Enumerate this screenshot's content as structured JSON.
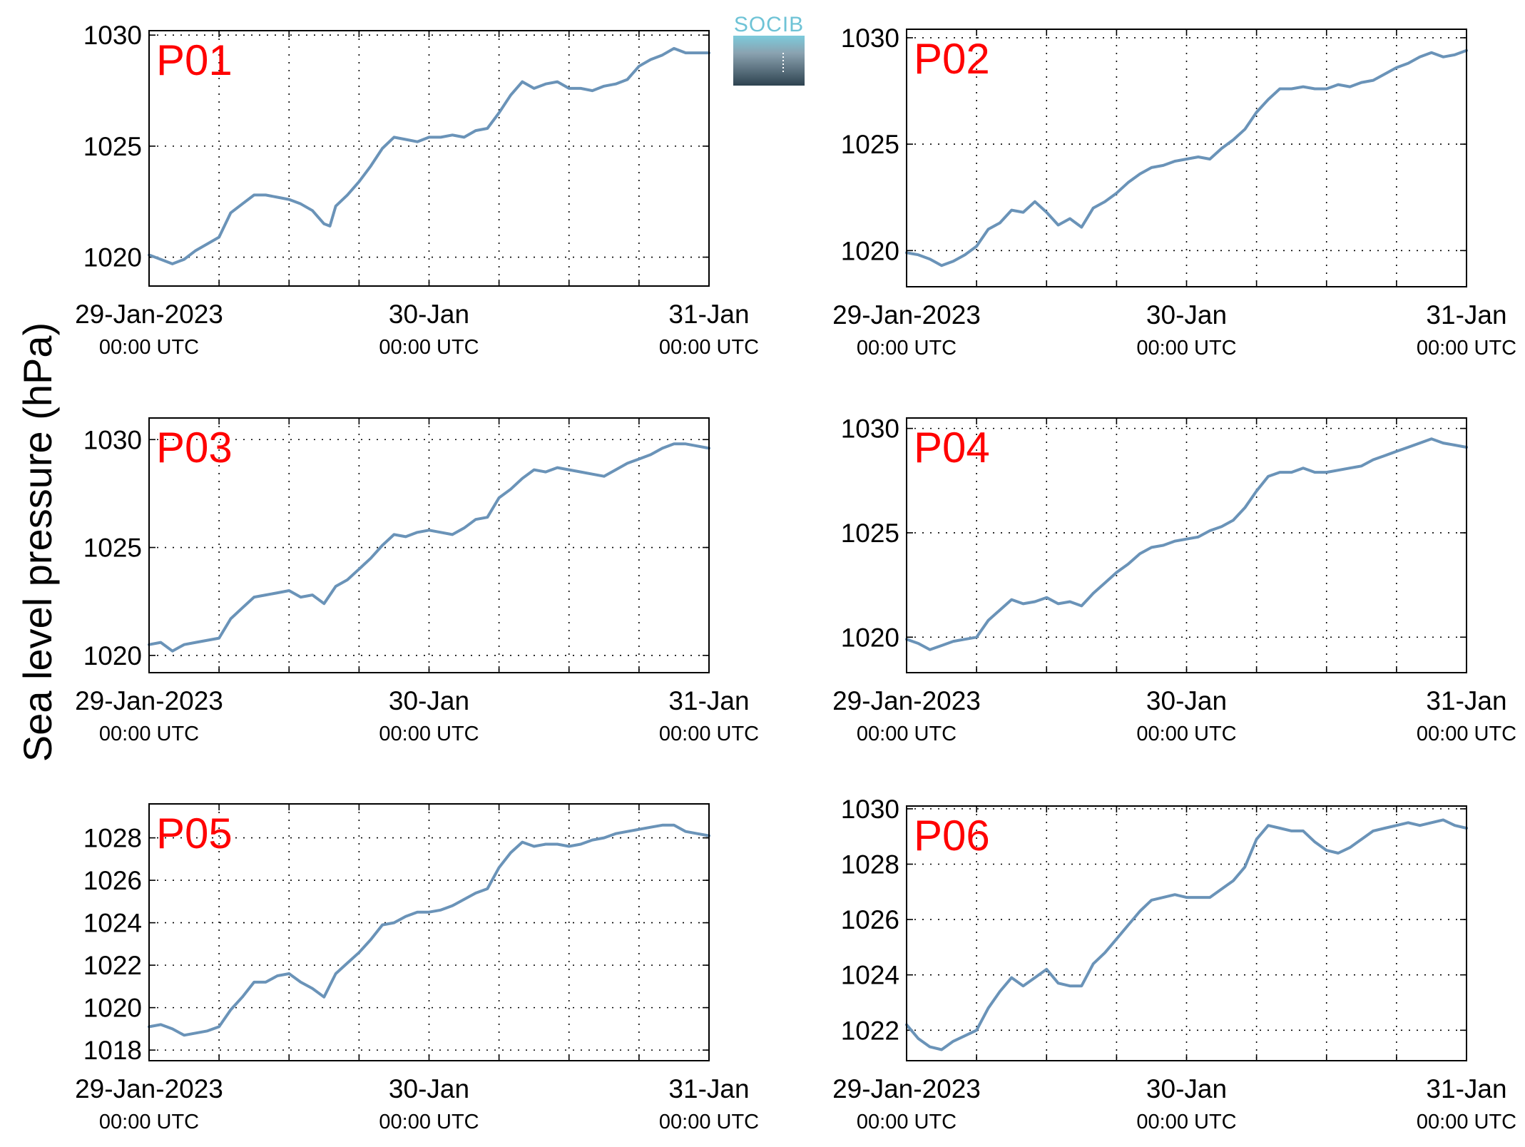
{
  "figure": {
    "ylabel": "Sea level pressure (hPa)",
    "logo_text": "SOCIB"
  },
  "colors": {
    "line": "#6a93b8",
    "panel_label": "#ff0000"
  },
  "chart_data": [
    {
      "type": "line",
      "label": "P01",
      "x_ticks": [
        {
          "x": 0,
          "main": "29-Jan-2023",
          "sub": "00:00 UTC"
        },
        {
          "x": 24,
          "main": "30-Jan",
          "sub": "00:00 UTC"
        },
        {
          "x": 48,
          "main": "31-Jan",
          "sub": "00:00 UTC"
        }
      ],
      "xlim": [
        0,
        48
      ],
      "ylim": [
        1018.7,
        1030.2
      ],
      "yticks": [
        1020,
        1025,
        1030
      ],
      "grid": true,
      "x": [
        0,
        1,
        2,
        3,
        4,
        5,
        6,
        7,
        8,
        9,
        10,
        11,
        12,
        13,
        14,
        15,
        15.5,
        16,
        17,
        18,
        19,
        20,
        21,
        22,
        23,
        24,
        25,
        26,
        27,
        28,
        29,
        30,
        31,
        32,
        33,
        34,
        35,
        36,
        37,
        38,
        39,
        40,
        41,
        42,
        43,
        44,
        45,
        46,
        47,
        48
      ],
      "y": [
        1020.1,
        1019.9,
        1019.7,
        1019.9,
        1020.3,
        1020.6,
        1020.9,
        1022.0,
        1022.4,
        1022.8,
        1022.8,
        1022.7,
        1022.6,
        1022.4,
        1022.1,
        1021.5,
        1021.4,
        1022.3,
        1022.8,
        1023.4,
        1024.1,
        1024.9,
        1025.4,
        1025.3,
        1025.2,
        1025.4,
        1025.4,
        1025.5,
        1025.4,
        1025.7,
        1025.8,
        1026.5,
        1027.3,
        1027.9,
        1027.6,
        1027.8,
        1027.9,
        1027.6,
        1027.6,
        1027.5,
        1027.7,
        1027.8,
        1028.0,
        1028.6,
        1028.9,
        1029.1,
        1029.4,
        1029.2,
        1029.2,
        1029.2
      ]
    },
    {
      "type": "line",
      "label": "P02",
      "x_ticks": [
        {
          "x": 0,
          "main": "29-Jan-2023",
          "sub": "00:00 UTC"
        },
        {
          "x": 24,
          "main": "30-Jan",
          "sub": "00:00 UTC"
        },
        {
          "x": 48,
          "main": "31-Jan",
          "sub": "00:00 UTC"
        }
      ],
      "xlim": [
        0,
        48
      ],
      "ylim": [
        1018.3,
        1030.4
      ],
      "yticks": [
        1020,
        1025,
        1030
      ],
      "grid": true,
      "x": [
        0,
        1,
        2,
        3,
        4,
        5,
        6,
        7,
        8,
        9,
        10,
        11,
        12,
        13,
        14,
        15,
        16,
        17,
        18,
        19,
        20,
        21,
        22,
        23,
        24,
        25,
        26,
        27,
        28,
        29,
        30,
        31,
        32,
        33,
        34,
        35,
        36,
        37,
        38,
        39,
        40,
        41,
        42,
        43,
        44,
        45,
        46,
        47,
        48
      ],
      "y": [
        1019.9,
        1019.8,
        1019.6,
        1019.3,
        1019.5,
        1019.8,
        1020.2,
        1021.0,
        1021.3,
        1021.9,
        1021.8,
        1022.3,
        1021.8,
        1021.2,
        1021.5,
        1021.1,
        1022.0,
        1022.3,
        1022.7,
        1023.2,
        1023.6,
        1023.9,
        1024.0,
        1024.2,
        1024.3,
        1024.4,
        1024.3,
        1024.8,
        1025.2,
        1025.7,
        1026.5,
        1027.1,
        1027.6,
        1027.6,
        1027.7,
        1027.6,
        1027.6,
        1027.8,
        1027.7,
        1027.9,
        1028.0,
        1028.3,
        1028.6,
        1028.8,
        1029.1,
        1029.3,
        1029.1,
        1029.2,
        1029.4
      ]
    },
    {
      "type": "line",
      "label": "P03",
      "x_ticks": [
        {
          "x": 0,
          "main": "29-Jan-2023",
          "sub": "00:00 UTC"
        },
        {
          "x": 24,
          "main": "30-Jan",
          "sub": "00:00 UTC"
        },
        {
          "x": 48,
          "main": "31-Jan",
          "sub": "00:00 UTC"
        }
      ],
      "xlim": [
        0,
        48
      ],
      "ylim": [
        1019.2,
        1031.0
      ],
      "yticks": [
        1020,
        1025,
        1030
      ],
      "grid": true,
      "x": [
        0,
        1,
        2,
        3,
        4,
        5,
        6,
        7,
        8,
        9,
        10,
        11,
        12,
        13,
        14,
        15,
        16,
        17,
        18,
        19,
        20,
        21,
        22,
        23,
        24,
        25,
        26,
        27,
        28,
        29,
        30,
        31,
        32,
        33,
        34,
        35,
        36,
        37,
        38,
        39,
        40,
        41,
        42,
        43,
        44,
        45,
        46,
        47,
        48
      ],
      "y": [
        1020.5,
        1020.6,
        1020.2,
        1020.5,
        1020.6,
        1020.7,
        1020.8,
        1021.7,
        1022.2,
        1022.7,
        1022.8,
        1022.9,
        1023.0,
        1022.7,
        1022.8,
        1022.4,
        1023.2,
        1023.5,
        1024.0,
        1024.5,
        1025.1,
        1025.6,
        1025.5,
        1025.7,
        1025.8,
        1025.7,
        1025.6,
        1025.9,
        1026.3,
        1026.4,
        1027.3,
        1027.7,
        1028.2,
        1028.6,
        1028.5,
        1028.7,
        1028.6,
        1028.5,
        1028.4,
        1028.3,
        1028.6,
        1028.9,
        1029.1,
        1029.3,
        1029.6,
        1029.8,
        1029.8,
        1029.7,
        1029.6
      ]
    },
    {
      "type": "line",
      "label": "P04",
      "x_ticks": [
        {
          "x": 0,
          "main": "29-Jan-2023",
          "sub": "00:00 UTC"
        },
        {
          "x": 24,
          "main": "30-Jan",
          "sub": "00:00 UTC"
        },
        {
          "x": 48,
          "main": "31-Jan",
          "sub": "00:00 UTC"
        }
      ],
      "xlim": [
        0,
        48
      ],
      "ylim": [
        1018.3,
        1030.5
      ],
      "yticks": [
        1020,
        1025,
        1030
      ],
      "grid": true,
      "x": [
        0,
        1,
        2,
        3,
        4,
        5,
        6,
        7,
        8,
        9,
        10,
        11,
        12,
        13,
        14,
        15,
        16,
        17,
        18,
        19,
        20,
        21,
        22,
        23,
        24,
        25,
        26,
        27,
        28,
        29,
        30,
        31,
        32,
        33,
        34,
        35,
        36,
        37,
        38,
        39,
        40,
        41,
        42,
        43,
        44,
        45,
        46,
        47,
        48
      ],
      "y": [
        1019.9,
        1019.7,
        1019.4,
        1019.6,
        1019.8,
        1019.9,
        1020.0,
        1020.8,
        1021.3,
        1021.8,
        1021.6,
        1021.7,
        1021.9,
        1021.6,
        1021.7,
        1021.5,
        1022.1,
        1022.6,
        1023.1,
        1023.5,
        1024.0,
        1024.3,
        1024.4,
        1024.6,
        1024.7,
        1024.8,
        1025.1,
        1025.3,
        1025.6,
        1026.2,
        1027.0,
        1027.7,
        1027.9,
        1027.9,
        1028.1,
        1027.9,
        1027.9,
        1028.0,
        1028.1,
        1028.2,
        1028.5,
        1028.7,
        1028.9,
        1029.1,
        1029.3,
        1029.5,
        1029.3,
        1029.2,
        1029.1
      ]
    },
    {
      "type": "line",
      "label": "P05",
      "x_ticks": [
        {
          "x": 0,
          "main": "29-Jan-2023",
          "sub": "00:00 UTC"
        },
        {
          "x": 24,
          "main": "30-Jan",
          "sub": "00:00 UTC"
        },
        {
          "x": 48,
          "main": "31-Jan",
          "sub": "00:00 UTC"
        }
      ],
      "xlim": [
        0,
        48
      ],
      "ylim": [
        1017.5,
        1029.6
      ],
      "yticks": [
        1018,
        1020,
        1022,
        1024,
        1026,
        1028
      ],
      "grid": true,
      "x": [
        0,
        1,
        2,
        3,
        4,
        5,
        6,
        7,
        8,
        9,
        10,
        11,
        12,
        13,
        14,
        15,
        16,
        17,
        18,
        19,
        20,
        21,
        22,
        23,
        24,
        25,
        26,
        27,
        28,
        29,
        30,
        31,
        32,
        33,
        34,
        35,
        36,
        37,
        38,
        39,
        40,
        41,
        42,
        43,
        44,
        45,
        46,
        47,
        48
      ],
      "y": [
        1019.1,
        1019.2,
        1019.0,
        1018.7,
        1018.8,
        1018.9,
        1019.1,
        1019.9,
        1020.5,
        1021.2,
        1021.2,
        1021.5,
        1021.6,
        1021.2,
        1020.9,
        1020.5,
        1021.6,
        1022.1,
        1022.6,
        1023.2,
        1023.9,
        1024.0,
        1024.3,
        1024.5,
        1024.5,
        1024.6,
        1024.8,
        1025.1,
        1025.4,
        1025.6,
        1026.6,
        1027.3,
        1027.8,
        1027.6,
        1027.7,
        1027.7,
        1027.6,
        1027.7,
        1027.9,
        1028.0,
        1028.2,
        1028.3,
        1028.4,
        1028.5,
        1028.6,
        1028.6,
        1028.3,
        1028.2,
        1028.1
      ]
    },
    {
      "type": "line",
      "label": "P06",
      "x_ticks": [
        {
          "x": 0,
          "main": "29-Jan-2023",
          "sub": "00:00 UTC"
        },
        {
          "x": 24,
          "main": "30-Jan",
          "sub": "00:00 UTC"
        },
        {
          "x": 48,
          "main": "31-Jan",
          "sub": "00:00 UTC"
        }
      ],
      "xlim": [
        0,
        48
      ],
      "ylim": [
        1020.9,
        1030.1
      ],
      "yticks": [
        1022,
        1024,
        1026,
        1028,
        1030
      ],
      "grid": true,
      "x": [
        0,
        1,
        2,
        3,
        4,
        5,
        6,
        7,
        8,
        9,
        10,
        11,
        12,
        13,
        14,
        15,
        16,
        17,
        18,
        19,
        20,
        21,
        22,
        23,
        24,
        25,
        26,
        27,
        28,
        29,
        30,
        31,
        32,
        33,
        34,
        35,
        36,
        37,
        38,
        39,
        40,
        41,
        42,
        43,
        44,
        45,
        46,
        47,
        48
      ],
      "y": [
        1022.2,
        1021.7,
        1021.4,
        1021.3,
        1021.6,
        1021.8,
        1022.0,
        1022.8,
        1023.4,
        1023.9,
        1023.6,
        1023.9,
        1024.2,
        1023.7,
        1023.6,
        1023.6,
        1024.4,
        1024.8,
        1025.3,
        1025.8,
        1026.3,
        1026.7,
        1026.8,
        1026.9,
        1026.8,
        1026.8,
        1026.8,
        1027.1,
        1027.4,
        1027.9,
        1028.9,
        1029.4,
        1029.3,
        1029.2,
        1029.2,
        1028.8,
        1028.5,
        1028.4,
        1028.6,
        1028.9,
        1029.2,
        1029.3,
        1029.4,
        1029.5,
        1029.4,
        1029.5,
        1029.6,
        1029.4,
        1029.3
      ]
    }
  ]
}
